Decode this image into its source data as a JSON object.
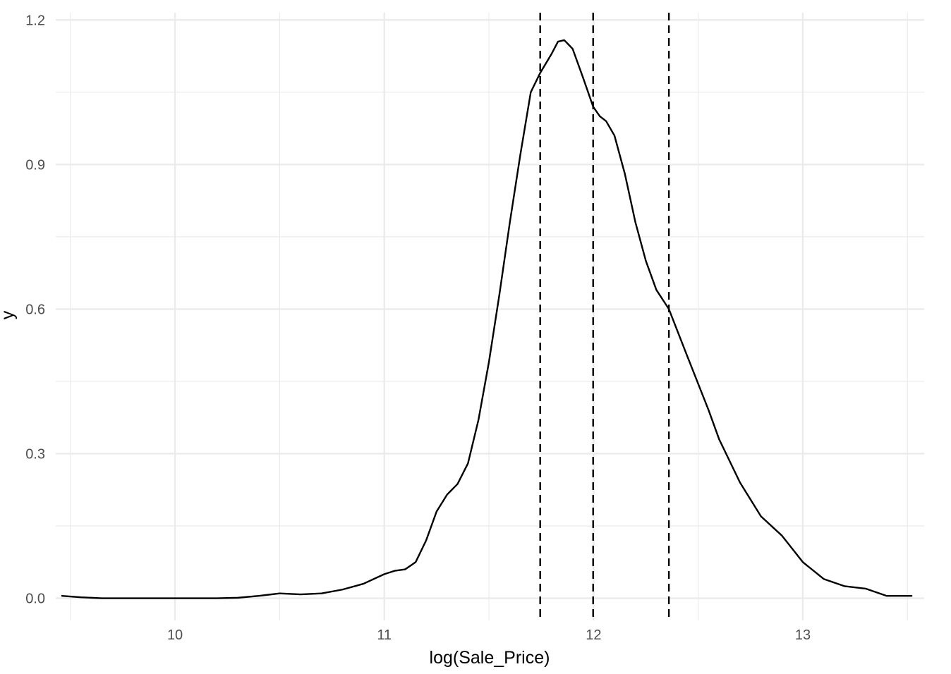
{
  "chart_data": {
    "type": "line",
    "title": "",
    "xlabel": "log(Sale_Price)",
    "ylabel": "y",
    "xlim": [
      9.43,
      13.58
    ],
    "ylim": [
      -0.046,
      1.215
    ],
    "grid": true,
    "x_major_ticks": [
      {
        "value": 10,
        "label": "10"
      },
      {
        "value": 11,
        "label": "11"
      },
      {
        "value": 12,
        "label": "12"
      },
      {
        "value": 13,
        "label": "13"
      }
    ],
    "x_minor_ticks": [
      9.5,
      10.5,
      11.5,
      12.5,
      13.5
    ],
    "y_major_ticks": [
      {
        "value": 0.0,
        "label": "0.0"
      },
      {
        "value": 0.3,
        "label": "0.3"
      },
      {
        "value": 0.6,
        "label": "0.6"
      },
      {
        "value": 0.9,
        "label": "0.9"
      },
      {
        "value": 1.2,
        "label": "1.2"
      }
    ],
    "y_minor_ticks": [
      0.15,
      0.45,
      0.75,
      1.05
    ],
    "vlines": [
      {
        "x": 11.745,
        "style": "dashed"
      },
      {
        "x": 11.998,
        "style": "dashed"
      },
      {
        "x": 12.36,
        "style": "dashed"
      }
    ],
    "series": [
      {
        "color": "#000000",
        "x": [
          9.46,
          9.55,
          9.65,
          9.8,
          10.0,
          10.2,
          10.3,
          10.4,
          10.5,
          10.6,
          10.7,
          10.8,
          10.9,
          11.0,
          11.05,
          11.1,
          11.15,
          11.2,
          11.25,
          11.3,
          11.35,
          11.4,
          11.45,
          11.5,
          11.55,
          11.6,
          11.65,
          11.7,
          11.745,
          11.8,
          11.83,
          11.86,
          11.9,
          11.95,
          11.998,
          12.03,
          12.06,
          12.1,
          12.15,
          12.2,
          12.25,
          12.3,
          12.36,
          12.45,
          12.55,
          12.6,
          12.7,
          12.8,
          12.9,
          13.0,
          13.1,
          13.2,
          13.3,
          13.4,
          13.52
        ],
        "y": [
          0.005,
          0.002,
          0.0,
          0.0,
          0.0,
          0.0,
          0.001,
          0.005,
          0.01,
          0.008,
          0.01,
          0.018,
          0.03,
          0.05,
          0.057,
          0.06,
          0.075,
          0.12,
          0.18,
          0.215,
          0.237,
          0.28,
          0.37,
          0.49,
          0.63,
          0.78,
          0.92,
          1.05,
          1.09,
          1.13,
          1.155,
          1.158,
          1.14,
          1.08,
          1.02,
          1.0,
          0.99,
          0.96,
          0.88,
          0.78,
          0.7,
          0.64,
          0.6,
          0.5,
          0.39,
          0.33,
          0.24,
          0.17,
          0.13,
          0.075,
          0.04,
          0.025,
          0.02,
          0.005,
          0.005
        ]
      }
    ]
  }
}
